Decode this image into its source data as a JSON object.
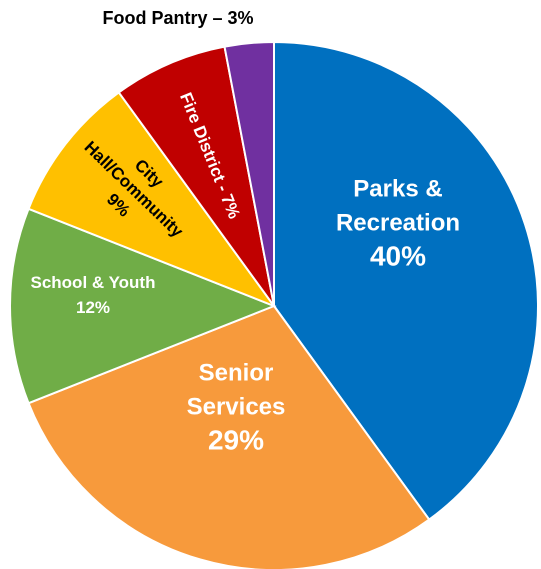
{
  "chart_data": {
    "type": "pie",
    "slices": [
      {
        "name": "Parks & Recreation",
        "value": 40,
        "color": "#0070C0",
        "label_lines": [
          "Parks &",
          "Recreation",
          "40%"
        ],
        "label_color": "#ffffff"
      },
      {
        "name": "Senior Services",
        "value": 29,
        "color": "#F79A3C",
        "label_lines": [
          "Senior",
          "Services",
          "29%"
        ],
        "label_color": "#ffffff"
      },
      {
        "name": "School & Youth",
        "value": 12,
        "color": "#70AD47",
        "label_lines": [
          "School & Youth",
          "12%"
        ],
        "label_color": "#ffffff"
      },
      {
        "name": "City Hall/Community",
        "value": 9,
        "color": "#FFC000",
        "label_lines": [
          "City",
          "Hall/Community",
          "9%"
        ],
        "label_color": "#000000"
      },
      {
        "name": "Fire District",
        "value": 7,
        "color": "#C00000",
        "label_lines": [
          "Fire District - 7%"
        ],
        "label_color": "#ffffff"
      },
      {
        "name": "Food Pantry",
        "value": 3,
        "color": "#7030A0",
        "label_lines": [
          "Food Pantry – 3%"
        ],
        "label_color": "#000000"
      }
    ]
  }
}
